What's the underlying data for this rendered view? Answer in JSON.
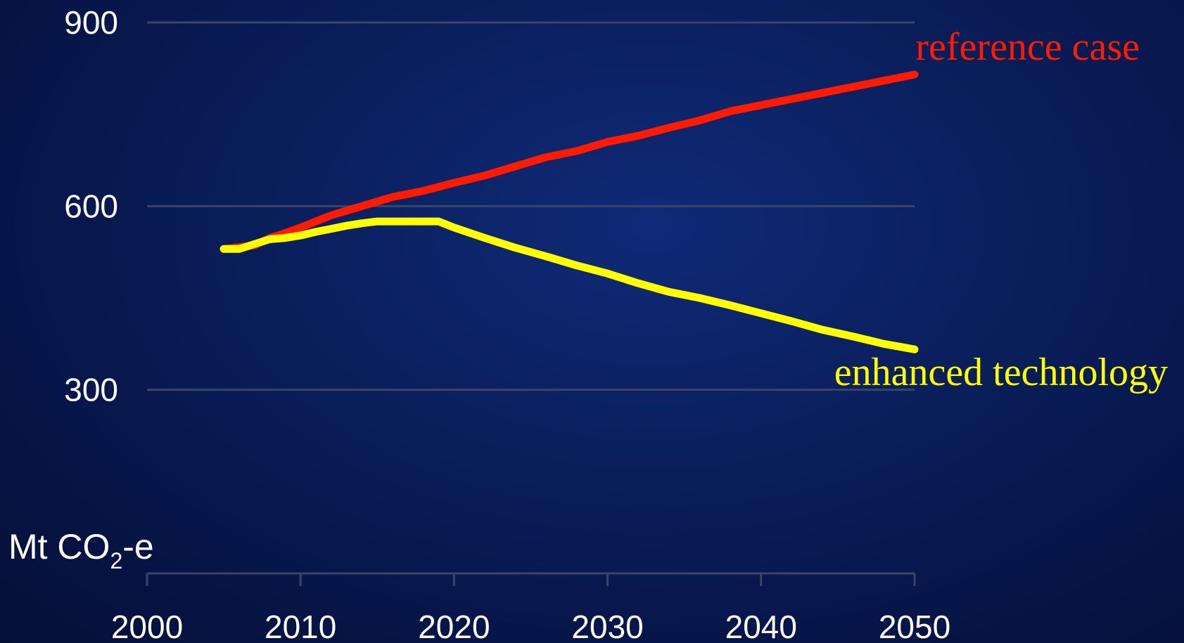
{
  "chart_data": {
    "type": "line",
    "ylabel": {
      "prefix": "Mt CO",
      "subscript": "2",
      "suffix": "-e"
    },
    "xlim": [
      2000,
      2050
    ],
    "ylim": [
      0,
      900
    ],
    "y_ticks": [
      300,
      600,
      900
    ],
    "x_ticks": [
      2000,
      2010,
      2020,
      2030,
      2040,
      2050
    ],
    "grid": "horizontal",
    "series": [
      {
        "name": "reference case",
        "color": "#ff1a00",
        "x": [
          2005,
          2007,
          2008,
          2009,
          2010,
          2012,
          2014,
          2016,
          2018,
          2020,
          2022,
          2024,
          2026,
          2028,
          2030,
          2032,
          2034,
          2036,
          2038,
          2040,
          2042,
          2044,
          2046,
          2048,
          2050
        ],
        "y": [
          530,
          536,
          548,
          556,
          565,
          585,
          600,
          615,
          625,
          638,
          650,
          665,
          680,
          690,
          705,
          715,
          728,
          740,
          755,
          765,
          775,
          785,
          795,
          805,
          815
        ]
      },
      {
        "name": "enhanced technology",
        "color": "#ffff00",
        "x": [
          2005,
          2006,
          2007,
          2008,
          2009,
          2010,
          2011,
          2012,
          2013,
          2014,
          2015,
          2016,
          2017,
          2018,
          2019,
          2020,
          2022,
          2024,
          2026,
          2028,
          2030,
          2032,
          2034,
          2036,
          2038,
          2040,
          2042,
          2044,
          2046,
          2048,
          2050
        ],
        "y": [
          530,
          530,
          538,
          546,
          548,
          552,
          558,
          563,
          568,
          572,
          575,
          575,
          575,
          575,
          575,
          565,
          548,
          532,
          518,
          503,
          490,
          474,
          460,
          450,
          438,
          425,
          412,
          398,
          387,
          375,
          366
        ]
      }
    ]
  }
}
